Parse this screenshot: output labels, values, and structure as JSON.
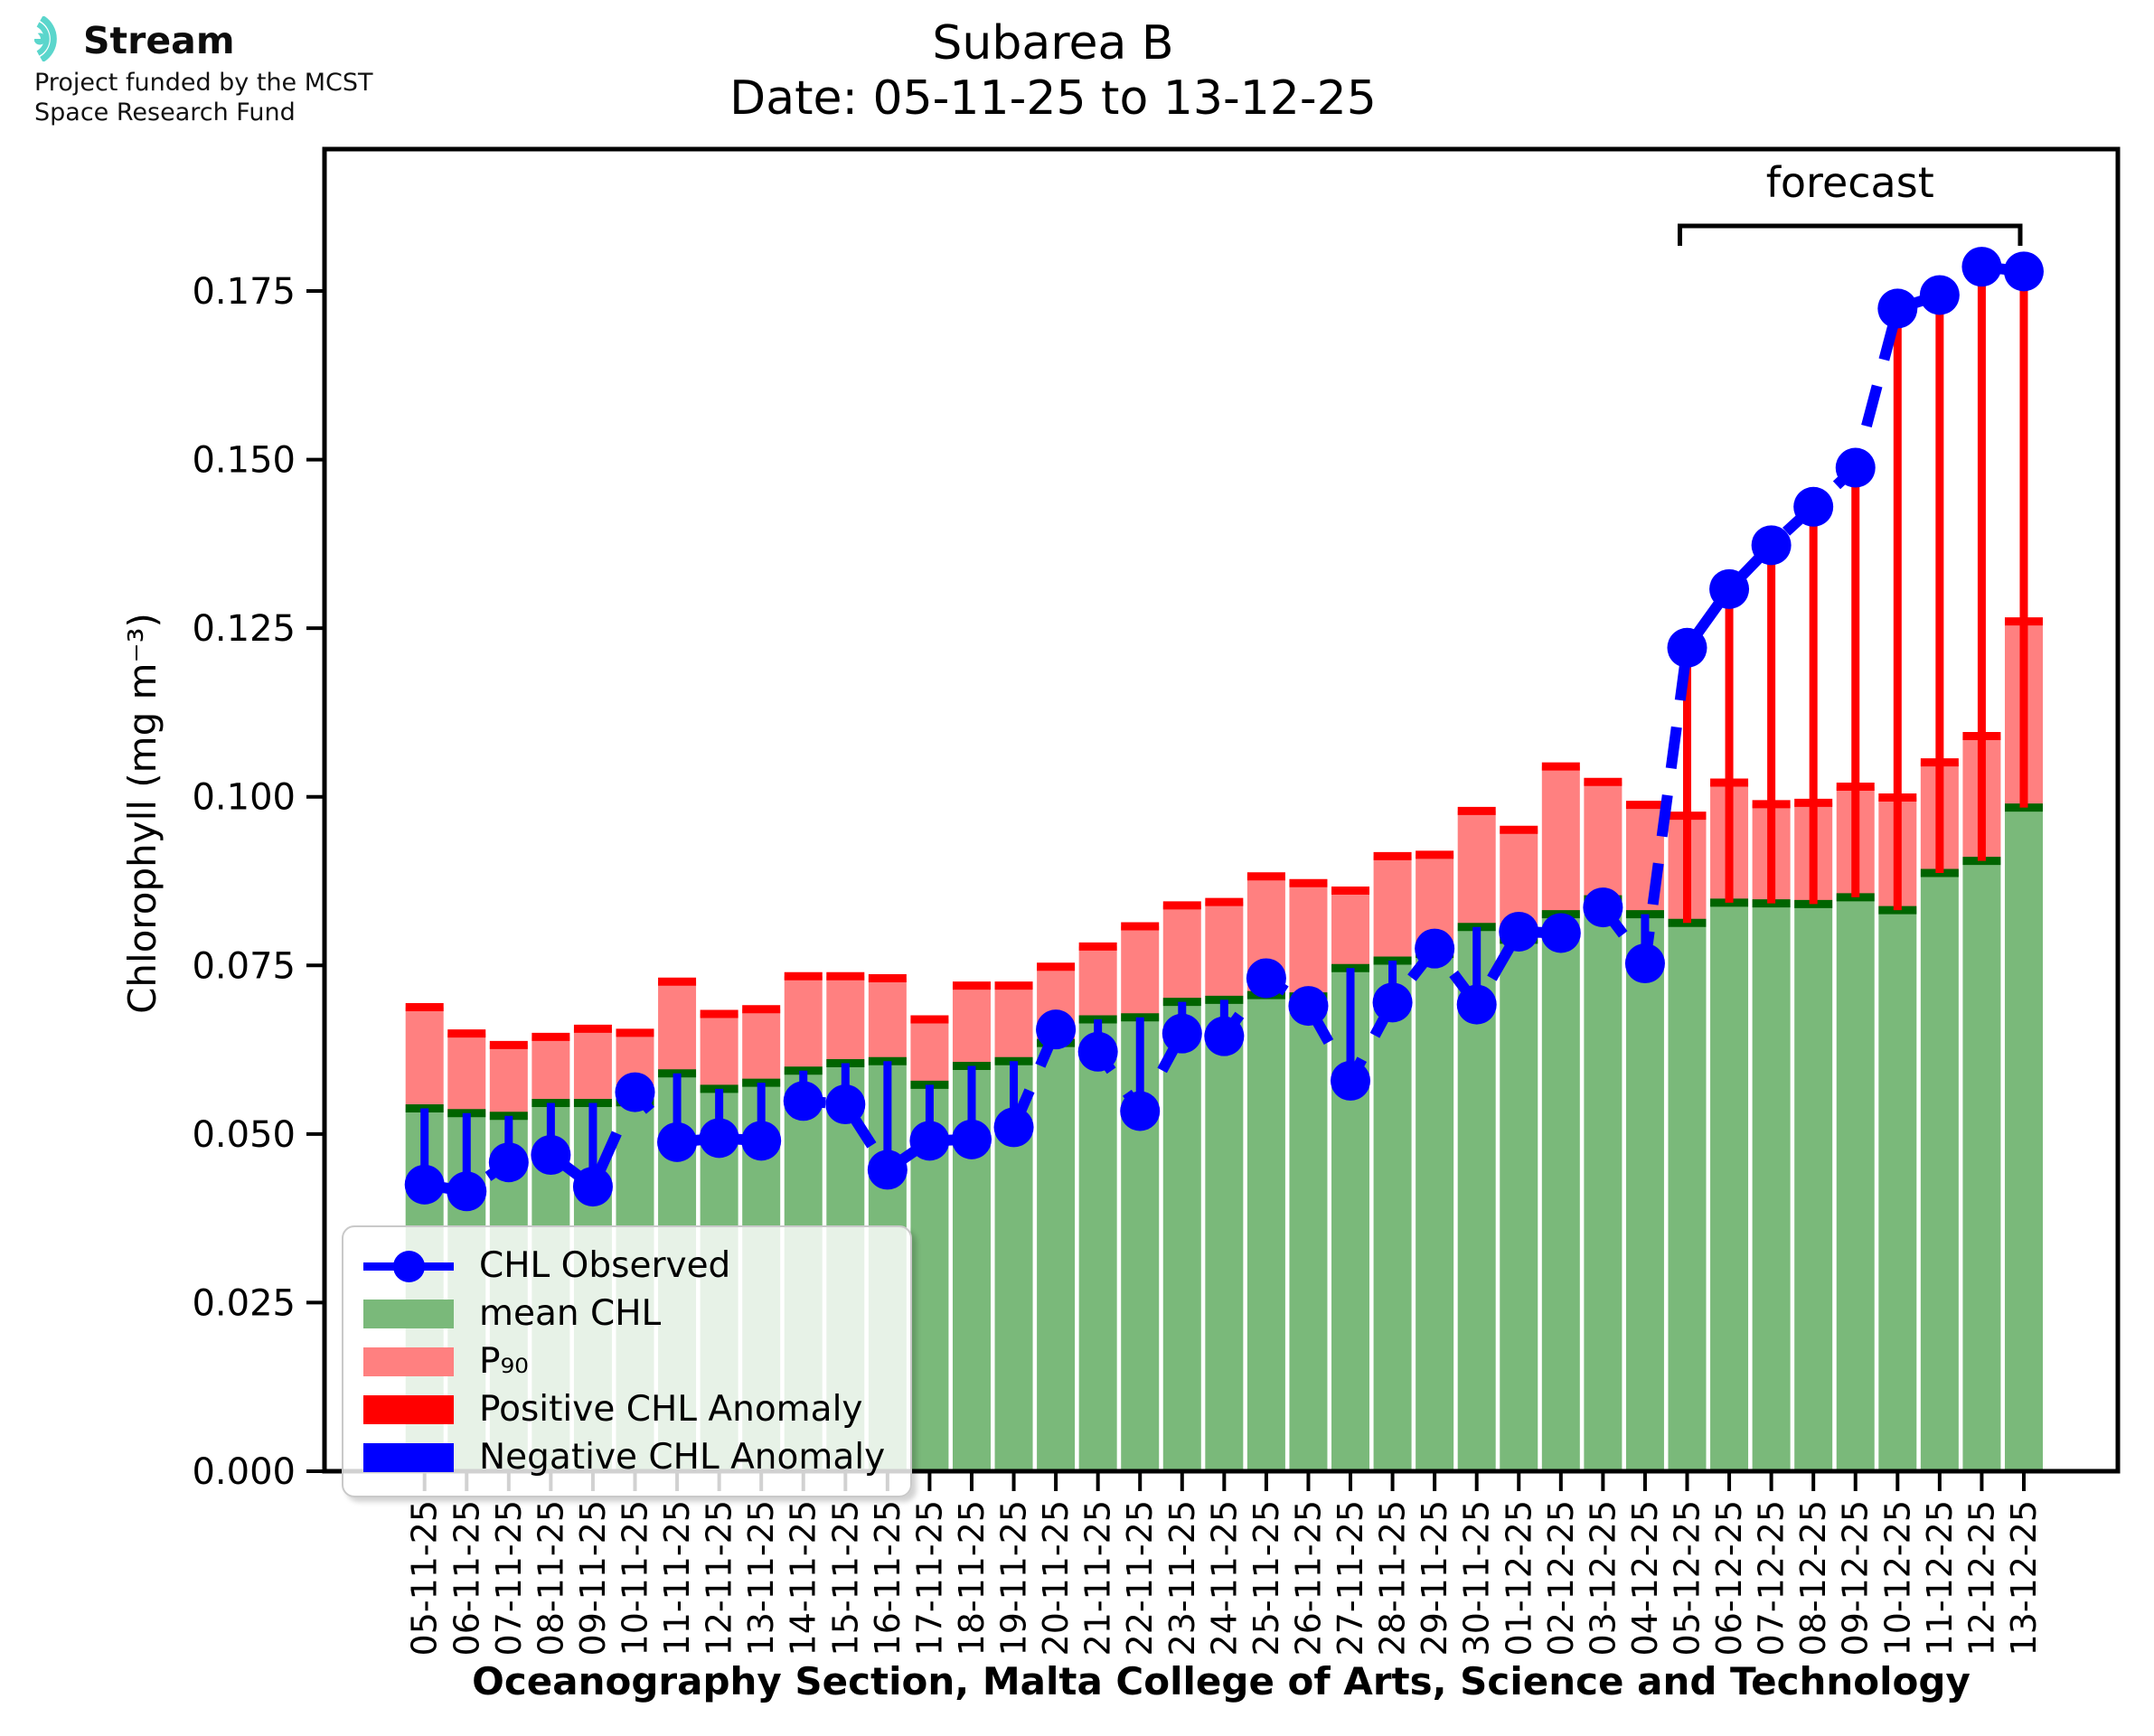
{
  "logo": {
    "brand": "Stream",
    "subtitle_line1": "Project funded by the MCST",
    "subtitle_line2": "Space Research Fund",
    "icon": "stream-waves-icon",
    "accent_color": "#5BD6CC"
  },
  "title": {
    "line1": "Subarea B",
    "line2": "Date: 05-11-25 to 13-12-25"
  },
  "chart_data": {
    "type": "bar",
    "title": "Subarea B — Date: 05-11-25 to 13-12-25",
    "xlabel": "Oceanography Section, Malta College of Arts, Science and Technology",
    "ylabel": "Chlorophyll (mg m⁻³)",
    "ylim": [
      0,
      0.196
    ],
    "ytick_labels": [
      "0.000",
      "0.025",
      "0.050",
      "0.075",
      "0.100",
      "0.125",
      "0.150",
      "0.175"
    ],
    "ytick_values": [
      0.0,
      0.025,
      0.05,
      0.075,
      0.1,
      0.125,
      0.15,
      0.175
    ],
    "grid": false,
    "legend_position": "lower-left",
    "categories": [
      "05-11-25",
      "06-11-25",
      "07-11-25",
      "08-11-25",
      "09-11-25",
      "10-11-25",
      "11-11-25",
      "12-11-25",
      "13-11-25",
      "14-11-25",
      "15-11-25",
      "16-11-25",
      "17-11-25",
      "18-11-25",
      "19-11-25",
      "20-11-25",
      "21-11-25",
      "22-11-25",
      "23-11-25",
      "24-11-25",
      "25-11-25",
      "26-11-25",
      "27-11-25",
      "28-11-25",
      "29-11-25",
      "30-11-25",
      "01-12-25",
      "02-12-25",
      "03-12-25",
      "04-12-25",
      "05-12-25",
      "06-12-25",
      "07-12-25",
      "08-12-25",
      "09-12-25",
      "10-12-25",
      "11-12-25",
      "12-12-25",
      "13-12-25"
    ],
    "series": [
      {
        "name": "mean CHL",
        "render": "bar",
        "color": "#7ab97a",
        "edge_color": "#006400",
        "values": [
          0.0538,
          0.0531,
          0.0527,
          0.0546,
          0.0546,
          0.0547,
          0.059,
          0.0567,
          0.0576,
          0.0594,
          0.0605,
          0.0608,
          0.0573,
          0.0601,
          0.0608,
          0.0635,
          0.067,
          0.0673,
          0.0696,
          0.0699,
          0.0706,
          0.0704,
          0.0746,
          0.0757,
          0.0767,
          0.0807,
          0.0788,
          0.0826,
          0.0848,
          0.0826,
          0.0813,
          0.0843,
          0.0842,
          0.0841,
          0.0851,
          0.0832,
          0.0887,
          0.0905,
          0.0984
        ]
      },
      {
        "name": "P₉₀",
        "render": "bar-top",
        "color": "#ff8080",
        "edge_color": "#ff0000",
        "values": [
          0.0688,
          0.0649,
          0.0632,
          0.0644,
          0.0656,
          0.065,
          0.0726,
          0.0678,
          0.0685,
          0.0734,
          0.0734,
          0.0731,
          0.067,
          0.072,
          0.072,
          0.0748,
          0.0778,
          0.0808,
          0.0839,
          0.0844,
          0.0882,
          0.0872,
          0.0861,
          0.0912,
          0.0914,
          0.0979,
          0.0951,
          0.1045,
          0.1022,
          0.0988,
          0.0972,
          0.1021,
          0.0989,
          0.0991,
          0.1015,
          0.0999,
          0.1051,
          0.109,
          0.126
        ]
      },
      {
        "name": "CHL Observed",
        "render": "dashed-line-markers",
        "color": "#0000ff",
        "values": [
          0.0425,
          0.0415,
          0.0458,
          0.0469,
          0.0422,
          0.0562,
          0.0488,
          0.0494,
          0.049,
          0.0549,
          0.0544,
          0.0447,
          0.049,
          0.0492,
          0.051,
          0.0655,
          0.0622,
          0.0534,
          0.0649,
          0.0645,
          0.0731,
          0.069,
          0.0579,
          0.0695,
          0.0775,
          0.0692,
          0.08,
          0.0798,
          0.0836,
          0.0753,
          0.1221,
          0.1308,
          0.1373,
          0.143,
          0.1488,
          0.1724,
          0.1744,
          0.1786,
          0.1779
        ]
      }
    ],
    "anomaly": {
      "positive_label": "Positive CHL Anomaly",
      "positive_color": "#ff0000",
      "negative_label": "Negative CHL Anomaly",
      "negative_color": "#0000ff",
      "rule": "vertical line from mean CHL to CHL Observed at each date"
    },
    "forecast": {
      "label": "forecast",
      "start_index": 30,
      "end_index": 38,
      "start_category": "05-12-25",
      "end_category": "13-12-25"
    }
  },
  "legend": {
    "entries": [
      {
        "label": "CHL Observed",
        "swatch": "line-marker",
        "color": "#0000ff"
      },
      {
        "label": "mean CHL",
        "swatch": "patch",
        "color": "#7ab97a"
      },
      {
        "label": "P₉₀",
        "swatch": "patch",
        "color": "#ff8080"
      },
      {
        "label": "Positive CHL Anomaly",
        "swatch": "patch",
        "color": "#ff0000"
      },
      {
        "label": "Negative CHL Anomaly",
        "swatch": "patch",
        "color": "#0000ff"
      }
    ]
  }
}
